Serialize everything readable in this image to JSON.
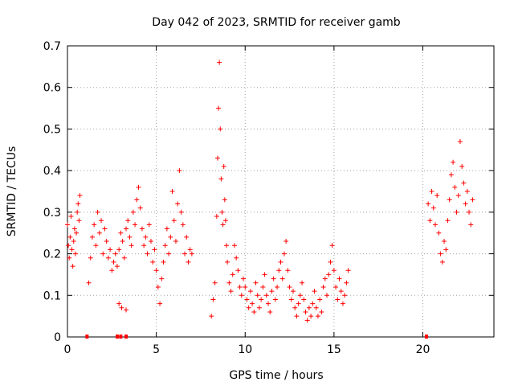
{
  "chart_data": {
    "type": "scatter",
    "title": "Day 042 of 2023, SRMTID for receiver gamb",
    "xlabel": "GPS time / hours",
    "ylabel": "SRMTID / TECUs",
    "xlim": [
      0,
      24
    ],
    "ylim": [
      0,
      0.7
    ],
    "xticks": [
      0,
      5,
      10,
      15,
      20
    ],
    "xtick_labels": [
      "0",
      "5",
      "10",
      "15",
      "20"
    ],
    "yticks": [
      0,
      0.1,
      0.2,
      0.3,
      0.4,
      0.5,
      0.6,
      0.7
    ],
    "ytick_labels": [
      "0",
      "0.1",
      "0.2",
      "0.3",
      "0.4",
      "0.5",
      "0.6",
      "0.7"
    ],
    "grid": true,
    "marker": "+",
    "color": "#ff0000",
    "series": [
      {
        "name": "SRMTID",
        "x": [
          0.0,
          0.05,
          0.1,
          0.15,
          0.2,
          0.25,
          0.3,
          0.35,
          0.4,
          0.45,
          0.5,
          0.55,
          0.6,
          0.65,
          0.7,
          1.2,
          1.3,
          1.4,
          1.5,
          1.6,
          1.7,
          1.8,
          1.9,
          2.0,
          2.1,
          2.2,
          2.3,
          2.4,
          2.5,
          2.6,
          2.7,
          2.8,
          2.9,
          3.0,
          3.1,
          3.2,
          3.3,
          3.4,
          3.5,
          3.6,
          3.7,
          3.8,
          3.9,
          4.0,
          4.1,
          4.2,
          4.3,
          4.4,
          4.5,
          4.6,
          4.7,
          4.8,
          4.9,
          5.0,
          5.1,
          5.2,
          5.3,
          5.4,
          5.5,
          5.6,
          5.7,
          5.8,
          5.9,
          6.0,
          6.1,
          6.2,
          6.3,
          6.4,
          6.5,
          6.6,
          6.7,
          6.8,
          6.9,
          7.0,
          2.9,
          3.05,
          3.3,
          8.1,
          8.2,
          8.3,
          8.4,
          8.45,
          8.5,
          8.55,
          8.6,
          8.65,
          8.7,
          8.75,
          8.8,
          8.85,
          8.9,
          8.95,
          9.0,
          9.1,
          9.2,
          9.3,
          9.4,
          9.5,
          9.6,
          9.7,
          9.8,
          9.9,
          10.0,
          10.1,
          10.2,
          10.3,
          10.4,
          10.5,
          10.6,
          10.7,
          10.8,
          10.9,
          11.0,
          11.1,
          11.2,
          11.3,
          11.4,
          11.5,
          11.6,
          11.7,
          11.8,
          11.9,
          12.0,
          12.1,
          12.2,
          12.3,
          12.4,
          12.5,
          12.6,
          12.7,
          12.8,
          12.9,
          13.0,
          13.1,
          13.2,
          13.3,
          13.4,
          13.5,
          13.6,
          13.7,
          13.8,
          13.9,
          14.0,
          14.1,
          14.2,
          14.3,
          14.4,
          14.5,
          14.6,
          14.7,
          14.8,
          14.9,
          15.0,
          15.1,
          15.2,
          15.3,
          15.4,
          15.5,
          15.6,
          15.7,
          15.8,
          20.3,
          20.4,
          20.5,
          20.6,
          20.7,
          20.8,
          20.9,
          21.0,
          21.1,
          21.2,
          21.3,
          21.4,
          21.5,
          21.6,
          21.7,
          21.8,
          21.9,
          22.0,
          22.1,
          22.2,
          22.3,
          22.4,
          22.5,
          22.6,
          22.7,
          22.8,
          1.1,
          2.8,
          3.0,
          3.3,
          20.2
        ],
        "y": [
          0.27,
          0.22,
          0.19,
          0.24,
          0.29,
          0.21,
          0.17,
          0.23,
          0.26,
          0.2,
          0.25,
          0.3,
          0.32,
          0.28,
          0.34,
          0.13,
          0.19,
          0.24,
          0.27,
          0.22,
          0.3,
          0.25,
          0.28,
          0.2,
          0.26,
          0.23,
          0.19,
          0.21,
          0.16,
          0.18,
          0.2,
          0.17,
          0.21,
          0.25,
          0.23,
          0.19,
          0.26,
          0.28,
          0.24,
          0.22,
          0.3,
          0.27,
          0.33,
          0.36,
          0.31,
          0.26,
          0.22,
          0.24,
          0.2,
          0.27,
          0.23,
          0.18,
          0.21,
          0.16,
          0.12,
          0.08,
          0.14,
          0.18,
          0.22,
          0.26,
          0.2,
          0.24,
          0.35,
          0.28,
          0.23,
          0.32,
          0.4,
          0.3,
          0.27,
          0.2,
          0.24,
          0.18,
          0.21,
          0.2,
          0.08,
          0.07,
          0.065,
          0.05,
          0.09,
          0.13,
          0.29,
          0.43,
          0.55,
          0.66,
          0.5,
          0.38,
          0.3,
          0.27,
          0.41,
          0.33,
          0.28,
          0.22,
          0.18,
          0.13,
          0.11,
          0.15,
          0.22,
          0.19,
          0.16,
          0.12,
          0.1,
          0.14,
          0.12,
          0.09,
          0.07,
          0.11,
          0.08,
          0.06,
          0.13,
          0.1,
          0.07,
          0.09,
          0.12,
          0.15,
          0.1,
          0.08,
          0.06,
          0.11,
          0.14,
          0.09,
          0.12,
          0.16,
          0.18,
          0.14,
          0.2,
          0.23,
          0.16,
          0.12,
          0.09,
          0.11,
          0.07,
          0.05,
          0.08,
          0.1,
          0.13,
          0.09,
          0.06,
          0.04,
          0.07,
          0.05,
          0.08,
          0.11,
          0.07,
          0.05,
          0.09,
          0.06,
          0.12,
          0.14,
          0.1,
          0.15,
          0.18,
          0.22,
          0.16,
          0.12,
          0.09,
          0.14,
          0.11,
          0.08,
          0.1,
          0.13,
          0.16,
          0.32,
          0.28,
          0.35,
          0.31,
          0.27,
          0.34,
          0.25,
          0.2,
          0.18,
          0.23,
          0.21,
          0.28,
          0.33,
          0.39,
          0.42,
          0.36,
          0.3,
          0.34,
          0.47,
          0.41,
          0.37,
          0.32,
          0.35,
          0.3,
          0.27,
          0.33,
          0.0,
          0.0,
          0.0,
          0.0,
          0.0
        ]
      }
    ]
  }
}
